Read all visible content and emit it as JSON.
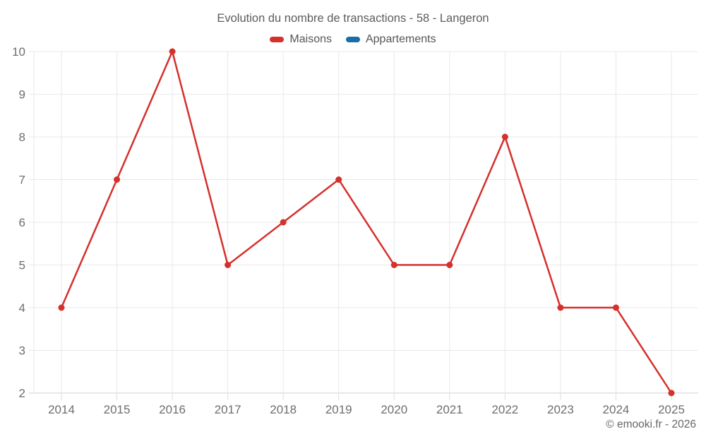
{
  "header": {
    "title": "Evolution du nombre de transactions - 58 - Langeron"
  },
  "legend": {
    "items": [
      {
        "id": "maisons",
        "label": "Maisons",
        "color": "#d5302c"
      },
      {
        "id": "appartements",
        "label": "Appartements",
        "color": "#1a6da8"
      }
    ]
  },
  "footer": {
    "copyright": "© emooki.fr - 2026"
  },
  "chart_data": {
    "type": "line",
    "title": "Evolution du nombre de transactions - 58 - Langeron",
    "categories": [
      "2014",
      "2015",
      "2016",
      "2017",
      "2018",
      "2019",
      "2020",
      "2021",
      "2022",
      "2023",
      "2024",
      "2025"
    ],
    "series": [
      {
        "name": "Maisons",
        "color": "#d5302c",
        "values": [
          4,
          7,
          10,
          5,
          6,
          7,
          5,
          5,
          8,
          4,
          4,
          2
        ]
      },
      {
        "name": "Appartements",
        "color": "#1a6da8",
        "values": []
      }
    ],
    "xlabel": "",
    "ylabel": "",
    "ylim": [
      2,
      10
    ],
    "ytick_step": 1,
    "grid": true,
    "legend_position": "top"
  },
  "style": {
    "grid_color": "#e8e8e8",
    "axis_color": "#cfcfcf",
    "tick_color": "#dddddd",
    "label_color": "#6e6e6e",
    "marker_radius": 4.5,
    "line_width": 2.5
  }
}
